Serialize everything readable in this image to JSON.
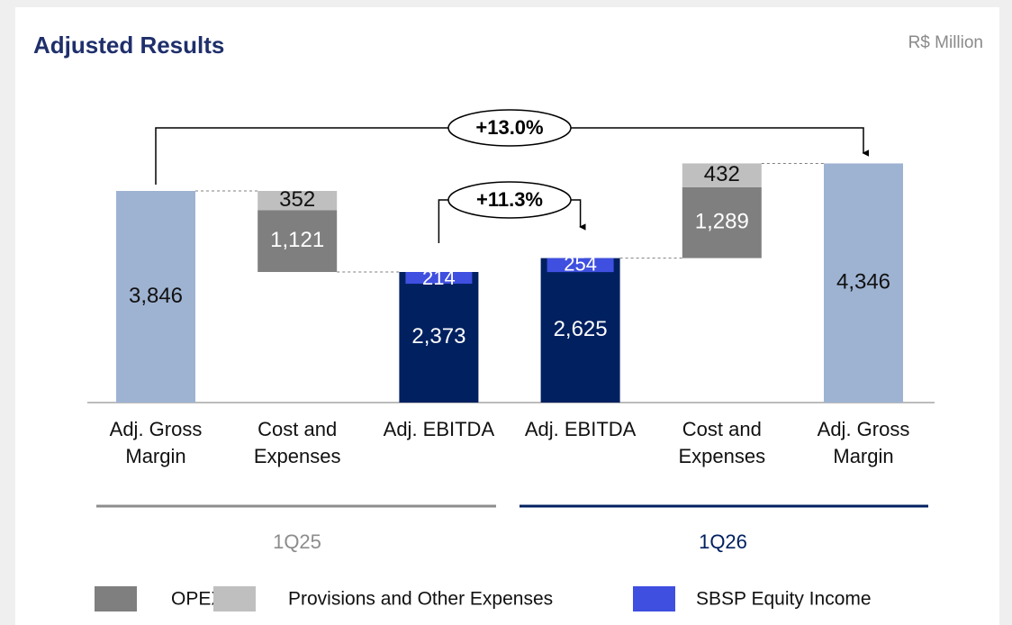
{
  "chart_data": {
    "type": "waterfall",
    "title": "Adjusted Results",
    "unit_label": "R$ Million",
    "categories": [
      "Adj. Gross Margin",
      "Cost and Expenses",
      "Adj. EBITDA",
      "Adj. EBITDA",
      "Cost and Expenses",
      "Adj. Gross Margin"
    ],
    "totals": {
      "color": "#9eb3d2",
      "values": [
        3846,
        null,
        null,
        null,
        null,
        4346
      ],
      "value_labels": [
        "3,846",
        null,
        null,
        null,
        null,
        "4,346"
      ]
    },
    "ebitda": {
      "color": "#002060",
      "values": [
        null,
        null,
        2373,
        2625,
        null,
        null
      ],
      "value_labels": [
        null,
        null,
        "2,373",
        "2,625",
        null,
        null
      ]
    },
    "series": [
      {
        "name": "OPEX",
        "color": "#7f7f7f",
        "values": [
          null,
          1121,
          null,
          null,
          1289,
          null
        ],
        "value_labels": [
          null,
          "1,121",
          null,
          null,
          "1,289",
          null
        ]
      },
      {
        "name": "Provisions and Other Expenses",
        "color": "#bfbfbf",
        "values": [
          null,
          352,
          null,
          null,
          432,
          null
        ]
      },
      {
        "name": "SBSP Equity Income",
        "color": "#3f4fe0",
        "values": [
          null,
          null,
          214,
          254,
          null,
          null
        ]
      }
    ],
    "annotations": [
      "+13.0%",
      "+11.3%"
    ],
    "periods": [
      {
        "label": "1Q25",
        "color": "#8c8c8c"
      },
      {
        "label": "1Q26",
        "color": "#002060"
      }
    ]
  }
}
